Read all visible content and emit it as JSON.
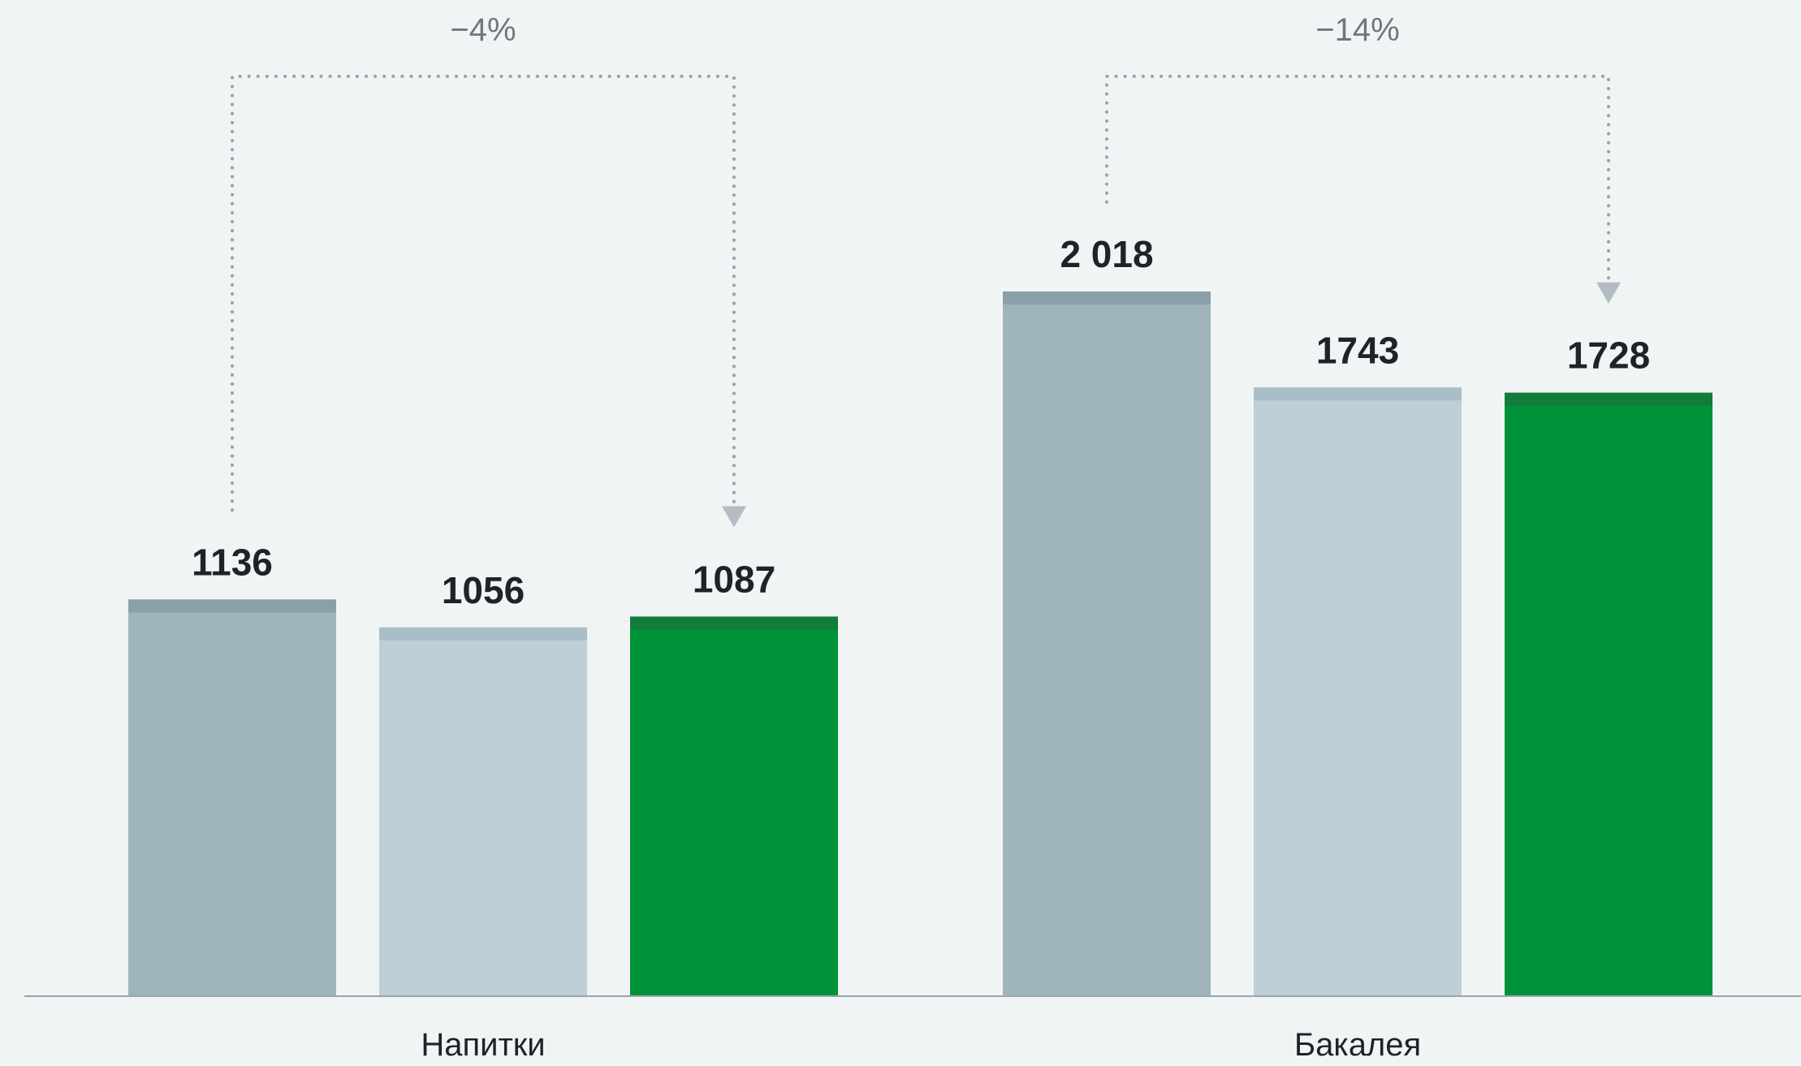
{
  "chart_data": {
    "type": "bar",
    "categories": [
      "Напитки",
      "Бакалея"
    ],
    "series": [
      {
        "values": [
          1136,
          2018
        ],
        "color": "#9fb4bc",
        "cap_color": "#8aa0a8"
      },
      {
        "values": [
          1056,
          1743
        ],
        "color": "#bfcfd6",
        "cap_color": "#a9bfc8"
      },
      {
        "values": [
          1087,
          1728
        ],
        "color": "#009239",
        "cap_color": "#137b3b"
      }
    ],
    "value_labels": [
      [
        "1136",
        "1056",
        "1087"
      ],
      [
        "2 018",
        "1743",
        "1728"
      ]
    ],
    "annotations": [
      {
        "category": "Напитки",
        "from_series": 0,
        "to_series": 2,
        "label": "−4%"
      },
      {
        "category": "Бакалея",
        "from_series": 0,
        "to_series": 2,
        "label": "−14%"
      }
    ],
    "ylim": [
      0,
      2500
    ],
    "grid": false,
    "legend": "none",
    "title": "",
    "xlabel": "",
    "ylabel": ""
  },
  "colors": {
    "background": "#f0f4f5",
    "axis": "#9aa5aa",
    "label_text": "#1e2326",
    "annotation": "#9aa1a5",
    "arrow": "#b3bcc2"
  }
}
